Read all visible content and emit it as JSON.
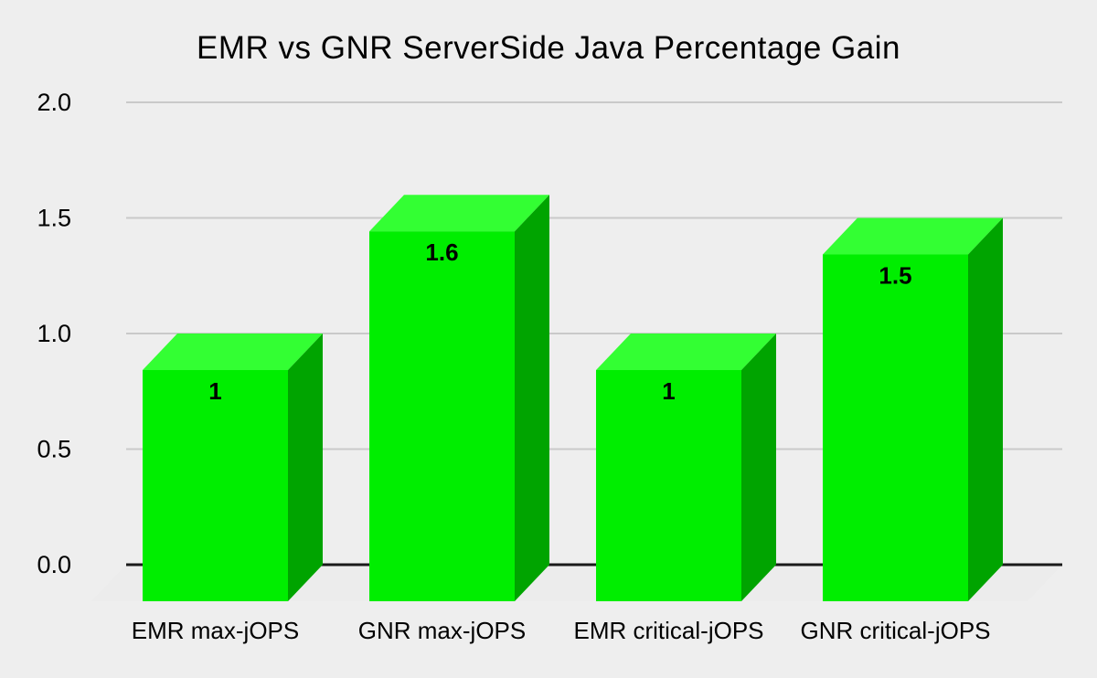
{
  "title": "EMR vs GNR ServerSide Java Percentage Gain",
  "chart_data": {
    "type": "bar",
    "subtype": "3d-column",
    "title": "EMR vs GNR ServerSide Java Percentage Gain",
    "categories": [
      "EMR max-jOPS",
      "GNR max-jOPS",
      "EMR critical-jOPS",
      "GNR critical-jOPS"
    ],
    "values": [
      1,
      1.6,
      1,
      1.5
    ],
    "data_labels": [
      "1",
      "1.6",
      "1",
      "1.5"
    ],
    "xlabel": "",
    "ylabel": "",
    "ylim": [
      0,
      2
    ],
    "ytick_values": [
      0,
      0.5,
      1,
      1.5,
      2
    ],
    "ytick_labels": [
      "0.0",
      "0.5",
      "1.0",
      "1.5",
      "2.0"
    ],
    "grid": true,
    "legend": "none",
    "colors": {
      "background": "#eeeeee",
      "bar_front": "#00ee00",
      "bar_top": "#33ff33",
      "bar_side": "#00a400",
      "gridline": "#c9c9c9",
      "axis_line": "#1a1a1a",
      "floor": "#ececec",
      "value_label": "#000000",
      "tick_label": "#000000",
      "category_label": "#000000"
    }
  }
}
